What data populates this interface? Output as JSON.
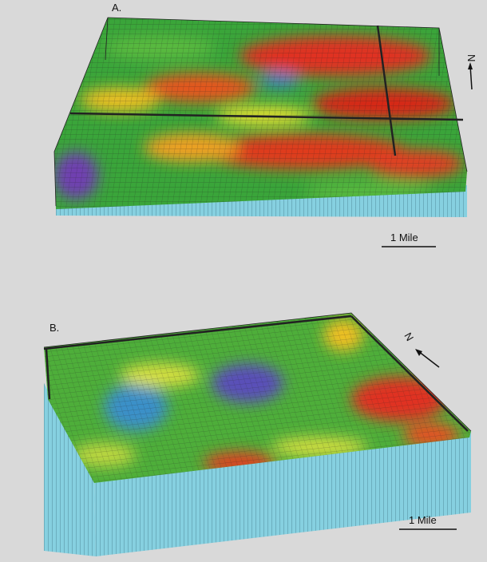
{
  "panels": [
    {
      "label": "A.",
      "north": "N",
      "scale": "1 Mile"
    },
    {
      "label": "B.",
      "north": "N",
      "scale": "1 Mile"
    }
  ]
}
